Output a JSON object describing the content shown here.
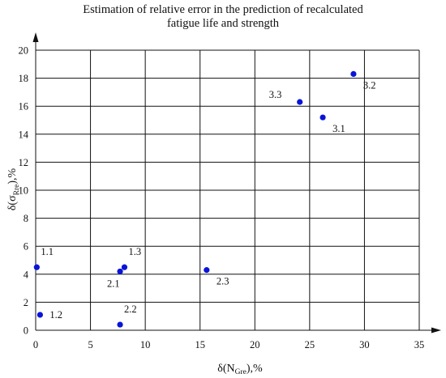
{
  "chart_data": {
    "type": "scatter",
    "title_lines": [
      "Estimation of relative error in the prediction of recalculated",
      "fatigue life and strength"
    ],
    "xlabel": {
      "main": "δ(N",
      "sub": "Gre",
      "tail": "),%"
    },
    "ylabel": {
      "main": "δ(σ",
      "sub": "Rre",
      "tail": "),%"
    },
    "xlim": [
      0,
      35
    ],
    "ylim": [
      0,
      20
    ],
    "xticks": [
      0,
      5,
      10,
      15,
      20,
      25,
      30,
      35
    ],
    "yticks": [
      0,
      2,
      4,
      6,
      8,
      10,
      12,
      14,
      16,
      18,
      20
    ],
    "grid": true,
    "marker_color": "#0a14d8",
    "points": [
      {
        "label": "1.1",
        "x": 0.1,
        "y": 4.5,
        "label_pos": "above-right"
      },
      {
        "label": "1.2",
        "x": 0.4,
        "y": 1.1,
        "label_pos": "right"
      },
      {
        "label": "1.3",
        "x": 8.1,
        "y": 4.5,
        "label_pos": "above-right"
      },
      {
        "label": "2.1",
        "x": 7.7,
        "y": 4.2,
        "label_pos": "below"
      },
      {
        "label": "2.2",
        "x": 7.7,
        "y": 0.4,
        "label_pos": "above-right"
      },
      {
        "label": "2.3",
        "x": 15.6,
        "y": 4.3,
        "label_pos": "below-right"
      },
      {
        "label": "3.3",
        "x": 24.1,
        "y": 16.3,
        "label_pos": "left"
      },
      {
        "label": "3.1",
        "x": 26.2,
        "y": 15.2,
        "label_pos": "below-right"
      },
      {
        "label": "3.2",
        "x": 29.0,
        "y": 18.3,
        "label_pos": "below-right"
      }
    ]
  }
}
